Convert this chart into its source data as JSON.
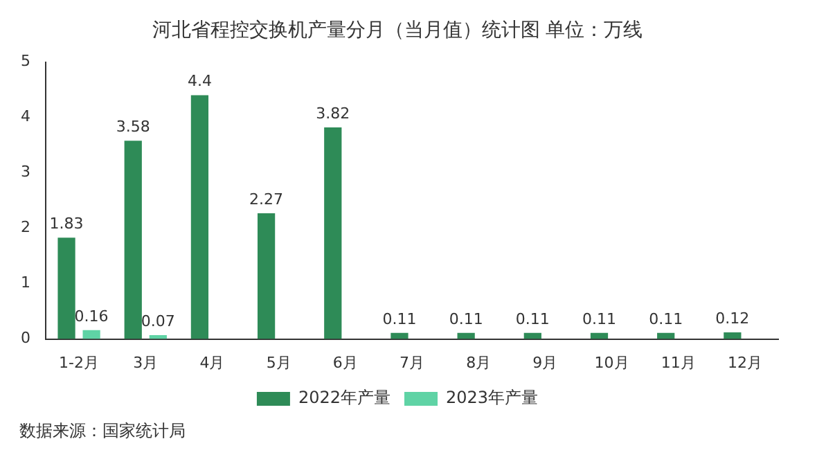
{
  "chart_data": {
    "type": "bar",
    "title": "河北省程控交换机产量分月（当月值）统计图 单位：万线",
    "categories": [
      "1-2月",
      "3月",
      "4月",
      "5月",
      "6月",
      "7月",
      "8月",
      "9月",
      "10月",
      "11月",
      "12月"
    ],
    "series": [
      {
        "name": "2022年产量",
        "color": "#2e8b57",
        "values": [
          1.83,
          3.58,
          4.4,
          2.27,
          3.82,
          0.11,
          0.11,
          0.11,
          0.11,
          0.11,
          0.12
        ]
      },
      {
        "name": "2023年产量",
        "color": "#5fd3a5",
        "values": [
          0.16,
          0.07,
          null,
          null,
          null,
          null,
          null,
          null,
          null,
          null,
          null
        ]
      }
    ],
    "ylim": [
      0,
      5
    ],
    "yticks": [
      0,
      1,
      2,
      3,
      4,
      5
    ],
    "grid": false,
    "legend": "bottom",
    "data_labels": true,
    "annotations": [
      "数据来源：国家统计局"
    ]
  }
}
